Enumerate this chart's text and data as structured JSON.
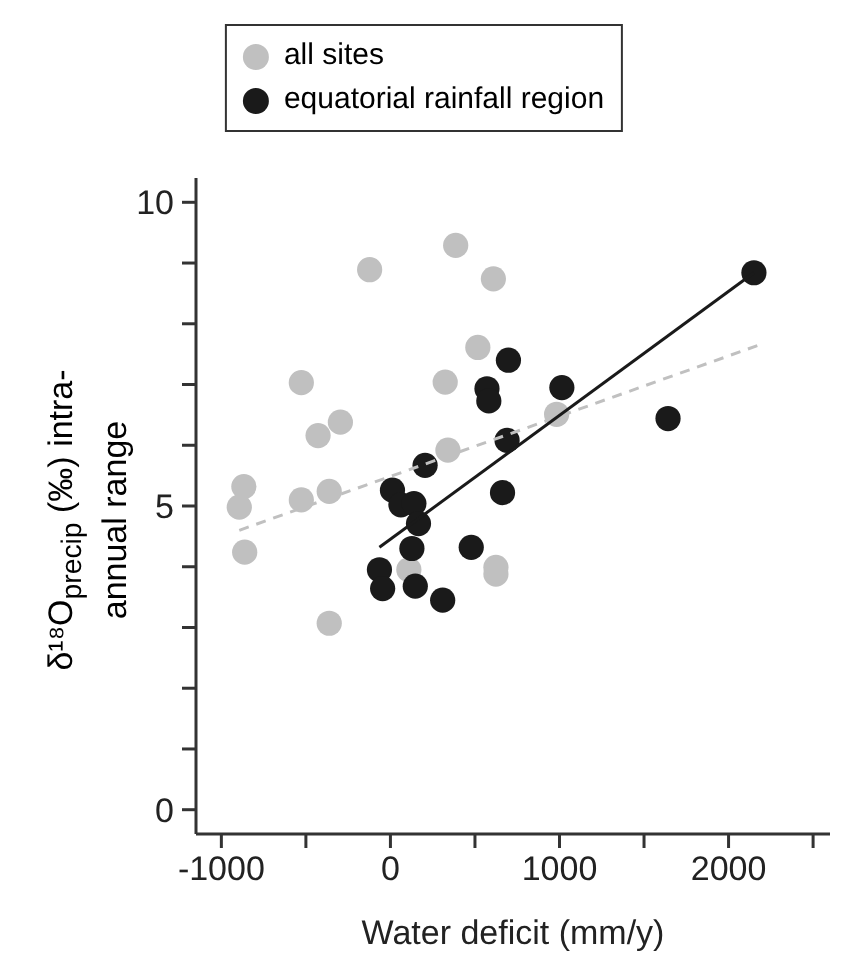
{
  "chart_data": {
    "type": "scatter",
    "xlabel": "Water deficit (mm/y)",
    "ylabel": "δ¹⁸O$_{precip}$ (‰) intra-annual range",
    "xlim": [
      -1150,
      2600
    ],
    "ylim": [
      -0.4,
      10.4
    ],
    "xticks": [
      -1000,
      {
        "value": -500,
        "label": null
      },
      0,
      {
        "value": 500,
        "label": null
      },
      1000,
      {
        "value": 1500,
        "label": null
      },
      2000,
      {
        "value": 2500,
        "label": null
      }
    ],
    "yticks": [
      0,
      {
        "value": 1,
        "label": null
      },
      {
        "value": 2,
        "label": null
      },
      {
        "value": 3,
        "label": null
      },
      {
        "value": 4,
        "label": null
      },
      5,
      {
        "value": 6,
        "label": null
      },
      {
        "value": 7,
        "label": null
      },
      {
        "value": 8,
        "label": null
      },
      {
        "value": 9,
        "label": null
      },
      10
    ],
    "legend": "top",
    "marker": "circle",
    "series": [
      {
        "name": "all sites",
        "color": "#c0c0c0",
        "x": [
          -867,
          -894,
          -862,
          -527,
          -527,
          -428,
          -296,
          -362,
          -362,
          -123,
          386,
          609,
          517,
          324,
          340,
          109,
          624,
          624,
          983
        ],
        "values": [
          5.32,
          4.98,
          4.24,
          7.03,
          5.1,
          6.16,
          6.38,
          5.24,
          3.07,
          8.89,
          9.29,
          8.74,
          7.61,
          7.04,
          5.92,
          3.95,
          3.99,
          3.88,
          6.51
        ]
      },
      {
        "name": "equatorial rainfall region",
        "color": "#1a1a1a",
        "x": [
          698,
          571,
          582,
          690,
          663,
          205,
          12,
          62,
          139,
          166,
          127,
          478,
          -65,
          -46,
          147,
          309,
          1014,
          1642,
          2150
        ],
        "values": [
          7.4,
          6.93,
          6.73,
          6.08,
          5.22,
          5.67,
          5.26,
          5.02,
          5.04,
          4.71,
          4.3,
          4.32,
          3.95,
          3.64,
          3.68,
          3.45,
          6.95,
          6.44,
          8.84
        ]
      },
      {
        "type": "line",
        "marker": "none",
        "line_style": "dashed",
        "color": "#c0c0c0",
        "x": [
          -894,
          2170
        ],
        "values": [
          4.6,
          7.64
        ]
      },
      {
        "type": "line",
        "marker": "none",
        "line_style": "solid",
        "color": "#1a1a1a",
        "x": [
          -65,
          2150
        ],
        "values": [
          4.32,
          8.84
        ]
      }
    ]
  }
}
